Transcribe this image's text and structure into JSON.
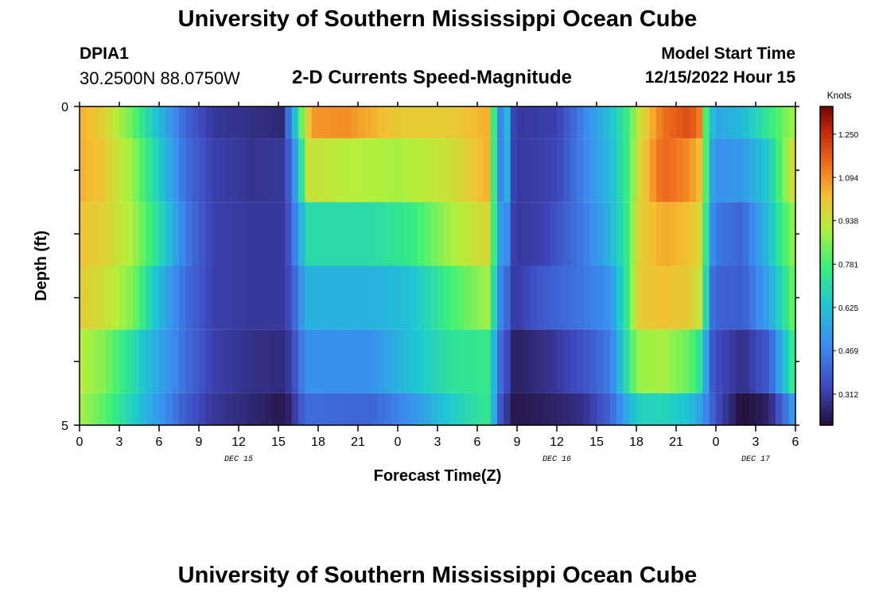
{
  "header": {
    "title": "University of Southern Mississippi Ocean Cube",
    "station_id": "DPIA1",
    "coordinates": "30.2500N  88.0750W",
    "subtitle": "2-D Currents Speed-Magnitude",
    "model_start_label": "Model Start Time",
    "model_start_value": "12/15/2022 Hour 15"
  },
  "footer": {
    "title": "University of Southern Mississippi Ocean Cube"
  },
  "chart_data": {
    "type": "heatmap",
    "xlabel": "Forecast Time(Z)",
    "ylabel": "Depth (ft)",
    "xlim": [
      0,
      54
    ],
    "ylim": [
      0,
      5
    ],
    "y_inverted": true,
    "x_tick_labels": [
      "0",
      "3",
      "6",
      "9",
      "12",
      "15",
      "18",
      "21",
      "0",
      "3",
      "6",
      "9",
      "12",
      "15",
      "18",
      "21",
      "0",
      "3",
      "6"
    ],
    "y_tick_labels": [
      "0",
      "5"
    ],
    "date_labels": [
      {
        "hour": 12,
        "text": "DEC 15"
      },
      {
        "hour": 36,
        "text": "DEC 16"
      },
      {
        "hour": 51,
        "text": "DEC 17"
      }
    ],
    "colorbar": {
      "unit": "Knots",
      "ticks": [
        "0.312",
        "0.469",
        "0.625",
        "0.781",
        "0.938",
        "1.094",
        "1.250"
      ],
      "range": [
        0.2,
        1.35
      ]
    },
    "depth_layers_ft": [
      0,
      1,
      2,
      3,
      4,
      5
    ],
    "speed_knots_by_layer": [
      {
        "depth_range_ft": [
          0,
          0.5
        ],
        "keyframes": [
          [
            0,
            1.05
          ],
          [
            2,
            0.98
          ],
          [
            4,
            0.82
          ],
          [
            6,
            0.6
          ],
          [
            8,
            0.4
          ],
          [
            10,
            0.3
          ],
          [
            13,
            0.28
          ],
          [
            15.3,
            0.26
          ],
          [
            16.2,
            0.6
          ],
          [
            16.8,
            0.85
          ],
          [
            17.5,
            1.08
          ],
          [
            20,
            1.1
          ],
          [
            24,
            1.0
          ],
          [
            28,
            1.0
          ],
          [
            31,
            1.05
          ],
          [
            31.3,
            0.7
          ],
          [
            31.8,
            0.45
          ],
          [
            32.2,
            0.62
          ],
          [
            32.8,
            0.3
          ],
          [
            36,
            0.32
          ],
          [
            38,
            0.47
          ],
          [
            40,
            0.62
          ],
          [
            41.5,
            0.78
          ],
          [
            42,
            0.92
          ],
          [
            44,
            1.14
          ],
          [
            46,
            1.2
          ],
          [
            47,
            1.1
          ],
          [
            47.3,
            0.72
          ],
          [
            48,
            0.55
          ],
          [
            50,
            0.6
          ],
          [
            52,
            0.75
          ],
          [
            54,
            0.9
          ]
        ]
      },
      {
        "depth_range_ft": [
          0.5,
          1.5
        ],
        "keyframes": [
          [
            0,
            1.05
          ],
          [
            2,
            1.0
          ],
          [
            4,
            0.88
          ],
          [
            6,
            0.65
          ],
          [
            8,
            0.42
          ],
          [
            10,
            0.32
          ],
          [
            13,
            0.29
          ],
          [
            15.5,
            0.3
          ],
          [
            16.5,
            0.6
          ],
          [
            17.2,
            0.95
          ],
          [
            20,
            0.92
          ],
          [
            24,
            0.9
          ],
          [
            28,
            0.95
          ],
          [
            31,
            1.05
          ],
          [
            31.3,
            0.7
          ],
          [
            31.8,
            0.45
          ],
          [
            32.2,
            0.6
          ],
          [
            32.8,
            0.3
          ],
          [
            36,
            0.33
          ],
          [
            38,
            0.47
          ],
          [
            40,
            0.6
          ],
          [
            41.5,
            0.78
          ],
          [
            42,
            0.95
          ],
          [
            44,
            1.16
          ],
          [
            46,
            1.1
          ],
          [
            47,
            1.0
          ],
          [
            47.5,
            0.58
          ],
          [
            48,
            0.5
          ],
          [
            50,
            0.52
          ],
          [
            52,
            0.65
          ],
          [
            54,
            1.0
          ]
        ]
      },
      {
        "depth_range_ft": [
          1.5,
          2.5
        ],
        "keyframes": [
          [
            0,
            1.02
          ],
          [
            2,
            0.98
          ],
          [
            4,
            0.9
          ],
          [
            6,
            0.7
          ],
          [
            8,
            0.45
          ],
          [
            10,
            0.32
          ],
          [
            13,
            0.3
          ],
          [
            15.5,
            0.3
          ],
          [
            16.5,
            0.52
          ],
          [
            17.2,
            0.7
          ],
          [
            22,
            0.7
          ],
          [
            25,
            0.75
          ],
          [
            28,
            0.9
          ],
          [
            31,
            0.98
          ],
          [
            31.5,
            0.55
          ],
          [
            32.2,
            0.5
          ],
          [
            32.8,
            0.3
          ],
          [
            35,
            0.32
          ],
          [
            38,
            0.45
          ],
          [
            40,
            0.58
          ],
          [
            41.5,
            0.78
          ],
          [
            42,
            0.98
          ],
          [
            44,
            1.06
          ],
          [
            46,
            1.02
          ],
          [
            47,
            0.95
          ],
          [
            47.5,
            0.52
          ],
          [
            48,
            0.45
          ],
          [
            50,
            0.4
          ],
          [
            52,
            0.62
          ],
          [
            54,
            0.9
          ]
        ]
      },
      {
        "depth_range_ft": [
          2.5,
          3.5
        ],
        "keyframes": [
          [
            0,
            1.0
          ],
          [
            2,
            0.95
          ],
          [
            4,
            0.85
          ],
          [
            6,
            0.6
          ],
          [
            8,
            0.42
          ],
          [
            10,
            0.32
          ],
          [
            13,
            0.3
          ],
          [
            15.5,
            0.3
          ],
          [
            16.5,
            0.45
          ],
          [
            17,
            0.58
          ],
          [
            22,
            0.58
          ],
          [
            25,
            0.62
          ],
          [
            28,
            0.78
          ],
          [
            31,
            0.9
          ],
          [
            31.5,
            0.5
          ],
          [
            32.2,
            0.42
          ],
          [
            32.8,
            0.3
          ],
          [
            35,
            0.38
          ],
          [
            38,
            0.44
          ],
          [
            40,
            0.5
          ],
          [
            41.5,
            0.78
          ],
          [
            42,
            1.0
          ],
          [
            44,
            1.02
          ],
          [
            46,
            1.0
          ],
          [
            47,
            0.92
          ],
          [
            47.5,
            0.45
          ],
          [
            48,
            0.4
          ],
          [
            50,
            0.38
          ],
          [
            52,
            0.55
          ],
          [
            54,
            0.85
          ]
        ]
      },
      {
        "depth_range_ft": [
          3.5,
          4.5
        ],
        "keyframes": [
          [
            0,
            0.92
          ],
          [
            2,
            0.85
          ],
          [
            4,
            0.7
          ],
          [
            6,
            0.55
          ],
          [
            8,
            0.42
          ],
          [
            10,
            0.32
          ],
          [
            13,
            0.28
          ],
          [
            15.5,
            0.27
          ],
          [
            16.5,
            0.4
          ],
          [
            17,
            0.5
          ],
          [
            22,
            0.5
          ],
          [
            25,
            0.62
          ],
          [
            28,
            0.72
          ],
          [
            31,
            0.75
          ],
          [
            31.5,
            0.45
          ],
          [
            32.2,
            0.35
          ],
          [
            32.8,
            0.24
          ],
          [
            36,
            0.3
          ],
          [
            38,
            0.36
          ],
          [
            40,
            0.45
          ],
          [
            41.5,
            0.75
          ],
          [
            42,
            0.88
          ],
          [
            44,
            0.9
          ],
          [
            46,
            0.82
          ],
          [
            47,
            0.7
          ],
          [
            47.5,
            0.4
          ],
          [
            48,
            0.35
          ],
          [
            50,
            0.28
          ],
          [
            52,
            0.38
          ],
          [
            54,
            0.8
          ]
        ]
      },
      {
        "depth_range_ft": [
          4.5,
          5
        ],
        "keyframes": [
          [
            0,
            0.9
          ],
          [
            2,
            0.8
          ],
          [
            4,
            0.66
          ],
          [
            6,
            0.52
          ],
          [
            8,
            0.38
          ],
          [
            10,
            0.3
          ],
          [
            13,
            0.26
          ],
          [
            15.5,
            0.22
          ],
          [
            16.5,
            0.34
          ],
          [
            17,
            0.42
          ],
          [
            22,
            0.4
          ],
          [
            25,
            0.5
          ],
          [
            28,
            0.65
          ],
          [
            31,
            0.75
          ],
          [
            31.5,
            0.4
          ],
          [
            32.2,
            0.3
          ],
          [
            32.8,
            0.22
          ],
          [
            36,
            0.25
          ],
          [
            38,
            0.28
          ],
          [
            40,
            0.4
          ],
          [
            41,
            0.52
          ],
          [
            42,
            0.66
          ],
          [
            44,
            0.68
          ],
          [
            46,
            0.62
          ],
          [
            47,
            0.52
          ],
          [
            48,
            0.35
          ],
          [
            50,
            0.2
          ],
          [
            52,
            0.25
          ],
          [
            54,
            0.55
          ]
        ]
      }
    ]
  }
}
